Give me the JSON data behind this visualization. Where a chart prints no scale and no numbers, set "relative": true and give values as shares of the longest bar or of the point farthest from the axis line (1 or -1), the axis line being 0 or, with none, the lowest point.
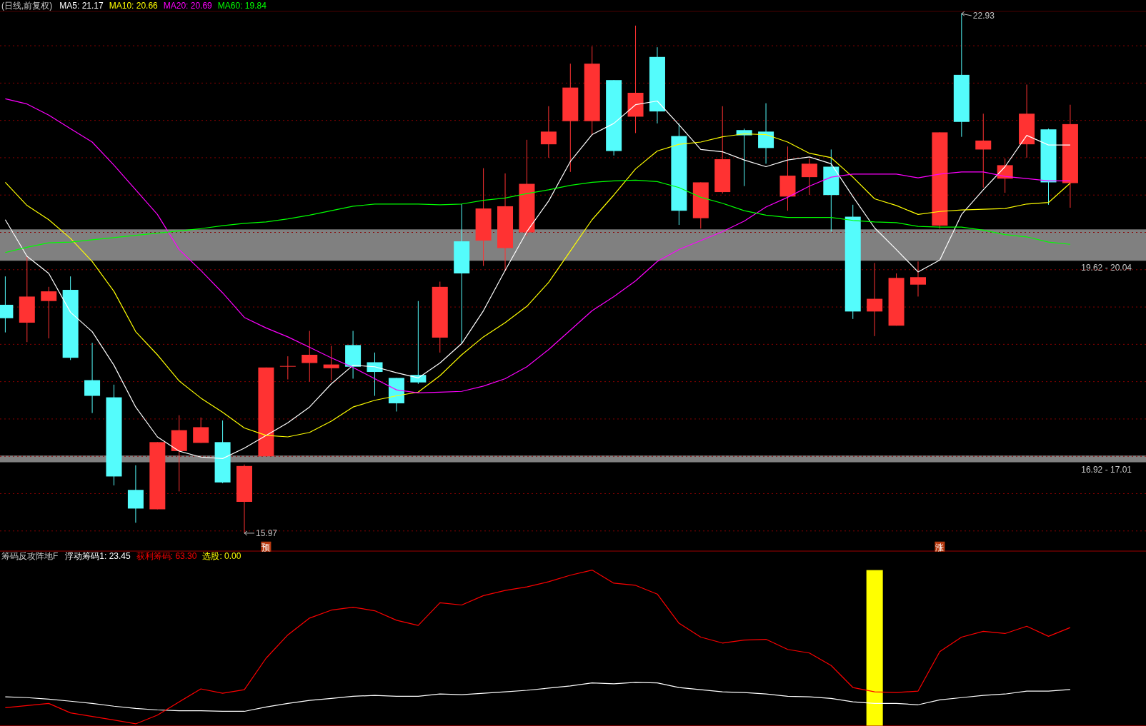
{
  "chart_data": [
    {
      "type": "candlestick",
      "title": "(日线,前复权)",
      "categories": [
        null,
        null,
        null,
        null,
        null,
        null,
        null,
        null,
        null,
        null,
        null,
        null,
        null,
        null,
        null,
        null,
        null,
        null,
        null,
        null,
        null,
        null,
        null,
        null,
        null,
        null,
        null,
        null,
        null,
        null,
        null,
        null,
        null,
        null,
        null,
        null,
        null,
        null,
        null,
        null,
        null,
        null,
        null,
        null,
        null,
        null,
        null,
        null,
        null,
        null
      ],
      "ylim": [
        15.73,
        22.96
      ],
      "yticks": [
        {
          "value": 16,
          "label": null
        },
        {
          "value": 16.5,
          "label": null
        },
        {
          "value": 17,
          "label": null
        },
        {
          "value": 17.5,
          "label": null
        },
        {
          "value": 18,
          "label": null
        },
        {
          "value": 18.5,
          "label": null
        },
        {
          "value": 19,
          "label": null
        },
        {
          "value": 19.5,
          "label": null
        },
        {
          "value": 20,
          "label": null
        },
        {
          "value": 20.5,
          "label": null
        },
        {
          "value": 21,
          "label": null
        },
        {
          "value": 21.5,
          "label": null
        },
        {
          "value": 22,
          "label": null
        },
        {
          "value": 22.5,
          "label": null
        }
      ],
      "grid": "y",
      "ohlc": [
        [
          19.03,
          19.41,
          18.66,
          18.85
        ],
        [
          18.79,
          19.67,
          18.53,
          19.14
        ],
        [
          19.08,
          19.27,
          18.58,
          19.21
        ],
        [
          19.23,
          19.41,
          18.29,
          18.32
        ],
        [
          18.02,
          18.52,
          17.58,
          17.81
        ],
        [
          17.79,
          17.96,
          16.61,
          16.73
        ],
        [
          16.55,
          16.88,
          16.11,
          16.3
        ],
        [
          16.29,
          17.19,
          16.29,
          17.19
        ],
        [
          17.07,
          17.55,
          16.53,
          17.35
        ],
        [
          17.18,
          17.52,
          17.18,
          17.39
        ],
        [
          17.19,
          17.48,
          16.64,
          16.65
        ],
        [
          16.39,
          16.89,
          15.97,
          16.87
        ],
        [
          17.0,
          18.19,
          17.0,
          18.19
        ],
        [
          18.21,
          18.34,
          18.03,
          18.21
        ],
        [
          18.25,
          18.68,
          18.0,
          18.36
        ],
        [
          18.18,
          18.48,
          18.02,
          18.23
        ],
        [
          18.49,
          18.68,
          18.04,
          18.2
        ],
        [
          18.26,
          18.39,
          17.81,
          18.13
        ],
        [
          18.05,
          18.05,
          17.6,
          17.71
        ],
        [
          18.09,
          19.08,
          17.97,
          17.99
        ],
        [
          18.59,
          19.34,
          18.39,
          19.27
        ],
        [
          19.88,
          20.38,
          18.51,
          19.45
        ],
        [
          19.89,
          20.86,
          19.55,
          20.32
        ],
        [
          19.79,
          20.79,
          19.48,
          20.35
        ],
        [
          20.0,
          21.24,
          19.95,
          20.65
        ],
        [
          21.18,
          21.69,
          21.0,
          21.35
        ],
        [
          21.49,
          22.26,
          20.81,
          21.94
        ],
        [
          21.49,
          22.49,
          21.3,
          22.26
        ],
        [
          22.04,
          22.04,
          21.03,
          21.09
        ],
        [
          21.55,
          22.77,
          21.33,
          21.87
        ],
        [
          22.35,
          22.48,
          21.46,
          21.62
        ],
        [
          21.29,
          21.46,
          20.1,
          20.29
        ],
        [
          20.19,
          20.67,
          20.05,
          20.67
        ],
        [
          20.54,
          21.69,
          20.52,
          20.98
        ],
        [
          21.37,
          21.39,
          20.62,
          21.3
        ],
        [
          21.35,
          21.73,
          20.92,
          21.13
        ],
        [
          20.48,
          21.15,
          20.29,
          20.76
        ],
        [
          20.74,
          20.99,
          20.5,
          20.92
        ],
        [
          20.88,
          21.11,
          20.01,
          20.5
        ],
        [
          20.21,
          20.37,
          18.84,
          18.94
        ],
        [
          18.94,
          19.59,
          18.61,
          19.11
        ],
        [
          18.75,
          19.45,
          18.75,
          19.39
        ],
        [
          19.3,
          19.61,
          19.14,
          19.4
        ],
        [
          20.09,
          21.34,
          20.05,
          21.34
        ],
        [
          22.11,
          22.93,
          21.28,
          21.48
        ],
        [
          21.11,
          21.59,
          20.6,
          21.23
        ],
        [
          20.72,
          20.99,
          20.53,
          20.9
        ],
        [
          21.18,
          21.98,
          21.0,
          21.59
        ],
        [
          21.38,
          21.39,
          20.37,
          20.67
        ],
        [
          20.66,
          21.71,
          20.33,
          21.45
        ]
      ],
      "colors": [
        "#54fcfc",
        "#ff3232",
        "#ff3232",
        "#54fcfc",
        "#54fcfc",
        "#54fcfc",
        "#54fcfc",
        "#ff3232",
        "#ff3232",
        "#ff3232",
        "#54fcfc",
        "#ff3232",
        "#ff3232",
        "#ff3232",
        "#ff3232",
        "#ff3232",
        "#54fcfc",
        "#54fcfc",
        "#54fcfc",
        "#54fcfc",
        "#ff3232",
        "#54fcfc",
        "#ff3232",
        "#ff3232",
        "#ff3232",
        "#ff3232",
        "#ff3232",
        "#ff3232",
        "#54fcfc",
        "#ff3232",
        "#54fcfc",
        "#54fcfc",
        "#ff3232",
        "#ff3232",
        "#54fcfc",
        "#54fcfc",
        "#ff3232",
        "#ff3232",
        "#54fcfc",
        "#54fcfc",
        "#ff3232",
        "#ff3232",
        "#ff3232",
        "#ff3232",
        "#54fcfc",
        "#ff3232",
        "#ff3232",
        "#ff3232",
        "#54fcfc",
        "#ff3232"
      ],
      "series": [
        {
          "type": "line",
          "name": "MA5: 21.17",
          "color": "#ffffff",
          "values": [
            20.17,
            19.68,
            19.45,
            18.93,
            18.67,
            18.22,
            17.66,
            17.26,
            17.07,
            16.99,
            16.97,
            17.11,
            17.28,
            17.45,
            17.66,
            17.97,
            18.22,
            18.2,
            18.12,
            18.05,
            18.25,
            18.51,
            18.95,
            19.49,
            20.01,
            20.42,
            20.95,
            21.31,
            21.46,
            21.71,
            21.76,
            21.44,
            21.11,
            21.08,
            20.97,
            20.88,
            20.97,
            21.01,
            20.92,
            20.48,
            20.06,
            19.77,
            19.47,
            19.63,
            20.24,
            20.57,
            20.88,
            21.3,
            21.17,
            21.17
          ]
        },
        {
          "type": "line",
          "name": "MA10: 20.66",
          "color": "#ffff00",
          "values": [
            20.67,
            20.36,
            20.17,
            19.92,
            19.61,
            19.21,
            18.67,
            18.36,
            18.01,
            17.78,
            17.59,
            17.38,
            17.28,
            17.26,
            17.32,
            17.47,
            17.66,
            17.75,
            17.81,
            17.86,
            18.08,
            18.36,
            18.6,
            18.79,
            19.01,
            19.33,
            19.75,
            20.17,
            20.5,
            20.85,
            21.09,
            21.18,
            21.21,
            21.28,
            21.32,
            21.31,
            21.21,
            21.06,
            21.0,
            20.74,
            20.45,
            20.36,
            20.24,
            20.28,
            20.3,
            20.31,
            20.32,
            20.38,
            20.4,
            20.66
          ]
        },
        {
          "type": "line",
          "name": "MA20: 20.69",
          "color": "#ff00ff",
          "values": [
            21.79,
            21.72,
            21.57,
            21.39,
            21.21,
            20.9,
            20.57,
            20.24,
            19.77,
            19.49,
            19.19,
            18.86,
            18.72,
            18.6,
            18.46,
            18.32,
            18.19,
            18.04,
            17.89,
            17.85,
            17.86,
            17.87,
            17.94,
            18.04,
            18.2,
            18.43,
            18.69,
            18.95,
            19.14,
            19.35,
            19.61,
            19.77,
            19.89,
            20.01,
            20.15,
            20.34,
            20.47,
            20.62,
            20.74,
            20.78,
            20.78,
            20.78,
            20.73,
            20.78,
            20.81,
            20.81,
            20.75,
            20.72,
            20.69,
            20.69
          ]
        },
        {
          "type": "line",
          "name": "MA60: 19.84",
          "color": "#00ff00",
          "values": [
            19.73,
            19.8,
            19.86,
            19.87,
            19.9,
            19.93,
            19.96,
            19.99,
            20.02,
            20.05,
            20.09,
            20.12,
            20.14,
            20.18,
            20.23,
            20.29,
            20.35,
            20.38,
            20.38,
            20.38,
            20.37,
            20.38,
            20.43,
            20.46,
            20.52,
            20.57,
            20.63,
            20.67,
            20.69,
            20.7,
            20.68,
            20.6,
            20.47,
            20.39,
            20.29,
            20.23,
            20.2,
            20.2,
            20.2,
            20.16,
            20.14,
            20.13,
            20.08,
            20.07,
            20.07,
            20.03,
            19.97,
            19.94,
            19.87,
            19.84
          ]
        },
        {
          "type": "scatter",
          "color": "#b83a10",
          "values": [
            null,
            null,
            null,
            null,
            null,
            null,
            null,
            null,
            null,
            null,
            null,
            null,
            15.79,
            null,
            null,
            null,
            null,
            null,
            null,
            null,
            null,
            null,
            null,
            null,
            null,
            null,
            null,
            null,
            null,
            null,
            null,
            null,
            null,
            null,
            null,
            null,
            null,
            null,
            null,
            null,
            null,
            null,
            null,
            15.79,
            null,
            null,
            null,
            null,
            null,
            null
          ],
          "value_labels": [
            null,
            null,
            null,
            null,
            null,
            null,
            null,
            null,
            null,
            null,
            null,
            null,
            "预",
            null,
            null,
            null,
            null,
            null,
            null,
            null,
            null,
            null,
            null,
            null,
            null,
            null,
            null,
            null,
            null,
            null,
            null,
            null,
            null,
            null,
            null,
            null,
            null,
            null,
            null,
            null,
            null,
            null,
            null,
            "涨",
            null,
            null,
            null,
            null,
            null,
            null
          ]
        }
      ],
      "bands": [
        {
          "axis": "y",
          "from": 16.92,
          "to": 17.01,
          "label": "16.92 - 17.01",
          "color": "#808080"
        },
        {
          "axis": "y",
          "from": 19.62,
          "to": 20.04,
          "label": "19.62 - 20.04",
          "color": "#808080"
        }
      ],
      "annotations": [
        "22.93",
        "15.97"
      ]
    },
    {
      "type": "line",
      "title": "筹码反攻阵地F",
      "categories": [
        null,
        null,
        null,
        null,
        null,
        null,
        null,
        null,
        null,
        null,
        null,
        null,
        null,
        null,
        null,
        null,
        null,
        null,
        null,
        null,
        null,
        null,
        null,
        null,
        null,
        null,
        null,
        null,
        null,
        null,
        null,
        null,
        null,
        null,
        null,
        null,
        null,
        null,
        null,
        null,
        null,
        null,
        null,
        null,
        null,
        null,
        null,
        null,
        null,
        null
      ],
      "relative": true,
      "series": [
        {
          "type": "line",
          "name": "浮动筹码1: 23.45",
          "color": "#ffffff",
          "values": [
            0.187,
            0.182,
            0.172,
            0.159,
            0.145,
            0.127,
            0.113,
            0.103,
            0.098,
            0.098,
            0.094,
            0.094,
            0.122,
            0.145,
            0.164,
            0.177,
            0.191,
            0.196,
            0.191,
            0.191,
            0.205,
            0.201,
            0.21,
            0.219,
            0.229,
            0.243,
            0.257,
            0.276,
            0.271,
            0.28,
            0.276,
            0.247,
            0.233,
            0.219,
            0.215,
            0.205,
            0.191,
            0.187,
            0.177,
            0.155,
            0.145,
            0.145,
            0.136,
            0.168,
            0.182,
            0.196,
            0.205,
            0.224,
            0.224,
            0.234
          ]
        },
        {
          "type": "line",
          "name": "获利筹码: 63.30",
          "color": "#ff0000",
          "values": [
            0.117,
            0.131,
            0.145,
            0.084,
            0.061,
            0.038,
            0.014,
            0.07,
            0.155,
            0.238,
            0.21,
            0.233,
            0.435,
            0.584,
            0.692,
            0.743,
            0.762,
            0.739,
            0.678,
            0.645,
            0.79,
            0.776,
            0.836,
            0.869,
            0.892,
            0.925,
            0.967,
            1,
            0.916,
            0.902,
            0.846,
            0.659,
            0.57,
            0.532,
            0.551,
            0.556,
            0.491,
            0.468,
            0.388,
            0.247,
            0.219,
            0.215,
            0.224,
            0.477,
            0.57,
            0.607,
            0.593,
            0.64,
            0.575,
            0.631
          ]
        }
      ]
    },
    {
      "type": "bar",
      "categories": [
        null,
        null,
        null,
        null,
        null,
        null,
        null,
        null,
        null,
        null,
        null,
        null,
        null,
        null,
        null,
        null,
        null,
        null,
        null,
        null,
        null,
        null,
        null,
        null,
        null,
        null,
        null,
        null,
        null,
        null,
        null,
        null,
        null,
        null,
        null,
        null,
        null,
        null,
        null,
        null,
        null,
        null,
        null,
        null,
        null,
        null,
        null,
        null,
        null,
        null
      ],
      "relative": true,
      "series": [
        {
          "type": "bar",
          "name": "选股: 0.00",
          "color": "#ffff00",
          "values": [
            null,
            null,
            null,
            null,
            null,
            null,
            null,
            null,
            null,
            null,
            null,
            null,
            null,
            null,
            null,
            null,
            null,
            null,
            null,
            null,
            null,
            null,
            null,
            null,
            null,
            null,
            null,
            null,
            null,
            null,
            null,
            null,
            null,
            null,
            null,
            null,
            null,
            null,
            null,
            null,
            1,
            null,
            null,
            null,
            null,
            null,
            null,
            null,
            null,
            null
          ]
        }
      ]
    }
  ]
}
